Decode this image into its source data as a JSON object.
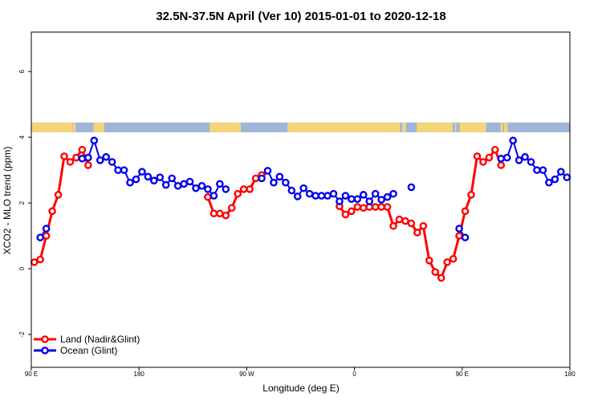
{
  "chart_data": {
    "type": "line",
    "title": "32.5N-37.5N April (Ver 10)   2015-01-01 to 2020-12-18",
    "xlabel": "Longitude (deg E)",
    "ylabel": "XCO2 - MLO trend (ppm)",
    "xlim": [
      90,
      540
    ],
    "ylim": [
      -3,
      7.2
    ],
    "x_ticks": [
      {
        "value": 90,
        "label": "90 E"
      },
      {
        "value": 180,
        "label": "180"
      },
      {
        "value": 270,
        "label": "90 W"
      },
      {
        "value": 360,
        "label": "0"
      },
      {
        "value": 450,
        "label": "90 E"
      },
      {
        "value": 540,
        "label": "180"
      }
    ],
    "y_ticks": [
      {
        "value": -2,
        "label": "-2"
      },
      {
        "value": 0,
        "label": "0"
      },
      {
        "value": 2,
        "label": "2"
      },
      {
        "value": 4,
        "label": "4"
      },
      {
        "value": 6,
        "label": "6"
      }
    ],
    "land_strip": {
      "y_min": 4.15,
      "y_max": 4.45,
      "ocean_color": "#9fb6d8",
      "land_color": "#f5d57a",
      "land_segments": [
        [
          90,
          124.5
        ],
        [
          125,
          127
        ],
        [
          142,
          151
        ],
        [
          239,
          265
        ],
        [
          304,
          395
        ],
        [
          395,
          398
        ],
        [
          400,
          403
        ],
        [
          412,
          442
        ],
        [
          444,
          445
        ],
        [
          448,
          470
        ],
        [
          482,
          484
        ],
        [
          485,
          488
        ]
      ]
    },
    "legend_position": "bottom-left",
    "series": [
      {
        "name": "Land (Nadir&Glint)",
        "color": "#ff0000",
        "x": [
          92.5,
          97.5,
          102.5,
          107.5,
          112.5,
          117.5,
          122.5,
          127.5,
          132.5,
          137.5,
          142.5,
          147.5,
          152.5,
          157.5,
          162.5,
          167.5,
          172.5,
          177.5,
          182.5,
          187.5,
          192.5,
          197.5,
          202.5,
          207.5,
          212.5,
          217.5,
          222.5,
          227.5,
          232.5,
          237.5,
          242.5,
          247.5,
          252.5,
          257.5,
          262.5,
          267.5,
          272.5,
          277.5,
          282.5,
          287.5,
          292.5,
          297.5,
          302.5,
          307.5,
          312.5,
          317.5,
          322.5,
          327.5,
          332.5,
          337.5,
          342.5,
          347.5,
          352.5,
          357.5,
          362.5,
          367.5,
          372.5,
          377.5,
          382.5,
          387.5,
          392.5,
          397.5,
          402.5,
          407.5,
          412.5,
          417.5,
          422.5,
          427.5,
          432.5,
          437.5,
          442.5,
          447.5,
          452.5,
          457.5,
          462.5,
          467.5,
          472.5,
          477.5,
          482.5,
          487.5,
          492.5,
          497.5,
          502.5,
          507.5,
          512.5,
          517.5,
          522.5,
          527.5,
          532.5,
          537.5
        ],
        "y": [
          0.2,
          0.28,
          1.0,
          1.75,
          2.25,
          3.42,
          3.25,
          3.38,
          3.62,
          3.15,
          null,
          null,
          null,
          null,
          null,
          null,
          null,
          null,
          null,
          null,
          null,
          null,
          null,
          null,
          null,
          null,
          null,
          null,
          null,
          null,
          null,
          null,
          null,
          null,
          null,
          null,
          null,
          null,
          null,
          null,
          null,
          null,
          null,
          null,
          null,
          null,
          null,
          null,
          null,
          null,
          null,
          null,
          null,
          null,
          null,
          null,
          null,
          null,
          null,
          null,
          null,
          null,
          null,
          null,
          null,
          null,
          null,
          null,
          null,
          null,
          null,
          null,
          null,
          null,
          null,
          null,
          null,
          null,
          null,
          null,
          null,
          null,
          null,
          null,
          null,
          null,
          null,
          null,
          null,
          null
        ]
      },
      {
        "name": "Ocean (Glint)",
        "color": "#0000ee",
        "x": [
          97.5,
          102.5,
          107.5,
          112.5,
          117.5,
          122.5,
          127.5,
          132.5,
          137.5,
          142.5,
          147.5,
          152.5,
          157.5,
          162.5,
          167.5,
          172.5,
          177.5,
          182.5,
          187.5,
          192.5,
          197.5,
          202.5,
          207.5,
          212.5,
          217.5,
          222.5,
          227.5,
          232.5,
          237.5,
          242.5,
          247.5,
          252.5,
          257.5,
          262.5,
          267.5,
          272.5,
          277.5,
          282.5,
          287.5,
          292.5,
          297.5,
          302.5,
          307.5,
          312.5,
          317.5,
          322.5,
          327.5,
          332.5,
          337.5,
          342.5,
          347.5,
          352.5,
          357.5,
          362.5,
          367.5,
          372.5,
          377.5,
          382.5,
          387.5,
          392.5,
          397.5,
          402.5,
          407.5,
          412.5,
          417.5,
          422.5,
          427.5,
          432.5,
          437.5,
          442.5,
          447.5,
          452.5,
          457.5,
          462.5,
          467.5,
          472.5,
          477.5,
          482.5,
          487.5,
          492.5,
          497.5,
          502.5,
          507.5,
          512.5,
          517.5,
          522.5,
          527.5,
          532.5,
          537.5
        ],
        "y": [
          0.95,
          1.22,
          null,
          null,
          null,
          null,
          null,
          3.35,
          3.38,
          3.9,
          3.3,
          3.4,
          3.25,
          3.0,
          3.0,
          2.62,
          2.72,
          2.95,
          2.8,
          2.68,
          2.78,
          2.55,
          2.75,
          2.52,
          2.58,
          2.65,
          2.45,
          2.52,
          2.42,
          2.22,
          2.58,
          2.42,
          null,
          null,
          null,
          null,
          null,
          2.75,
          2.98,
          2.62,
          2.8,
          2.62,
          2.38,
          2.2,
          2.45,
          2.28,
          2.22,
          2.22,
          2.22,
          2.28,
          2.05,
          2.22,
          2.12,
          2.12,
          2.25,
          2.05,
          2.28,
          2.1,
          2.18,
          2.28,
          null,
          null,
          2.48,
          null,
          null,
          null,
          null,
          null,
          null,
          null,
          1.22,
          0.95,
          null,
          null,
          null,
          null,
          null,
          3.35,
          3.38,
          3.9,
          3.3,
          3.4,
          3.25,
          3.0,
          3.0,
          2.62,
          2.72,
          2.95,
          2.78
        ]
      }
    ],
    "land_full": {
      "x": [
        92.5,
        97.5,
        102.5,
        107.5,
        112.5,
        117.5,
        122.5,
        127.5,
        132.5,
        137.5,
        237.5,
        242.5,
        247.5,
        252.5,
        257.5,
        262.5,
        267.5,
        272.5,
        277.5,
        282.5,
        347.5,
        352.5,
        357.5,
        362.5,
        367.5,
        372.5,
        377.5,
        382.5,
        387.5,
        392.5,
        397.5,
        402.5,
        407.5,
        412.5,
        417.5,
        422.5,
        427.5,
        432.5,
        437.5,
        442.5,
        447.5,
        452.5,
        457.5,
        462.5,
        467.5,
        472.5,
        477.5,
        482.5,
        487.5
      ],
      "y": [
        0.2,
        0.28,
        1.0,
        1.75,
        2.25,
        3.42,
        3.25,
        3.38,
        3.62,
        3.15,
        2.18,
        1.68,
        1.68,
        1.62,
        1.85,
        2.28,
        2.42,
        2.42,
        2.75,
        2.85,
        1.9,
        1.65,
        1.75,
        1.88,
        1.85,
        1.88,
        1.88,
        1.88,
        1.88,
        1.3,
        1.5,
        1.45,
        1.38,
        1.1,
        1.3,
        0.25,
        -0.1,
        -0.28,
        0.2,
        0.3,
        1.0,
        1.75,
        2.25,
        3.42,
        3.25,
        3.38,
        3.62,
        3.15,
        null
      ],
      "segments": [
        [
          0,
          9
        ],
        [
          10,
          19
        ],
        [
          20,
          47
        ]
      ]
    }
  }
}
